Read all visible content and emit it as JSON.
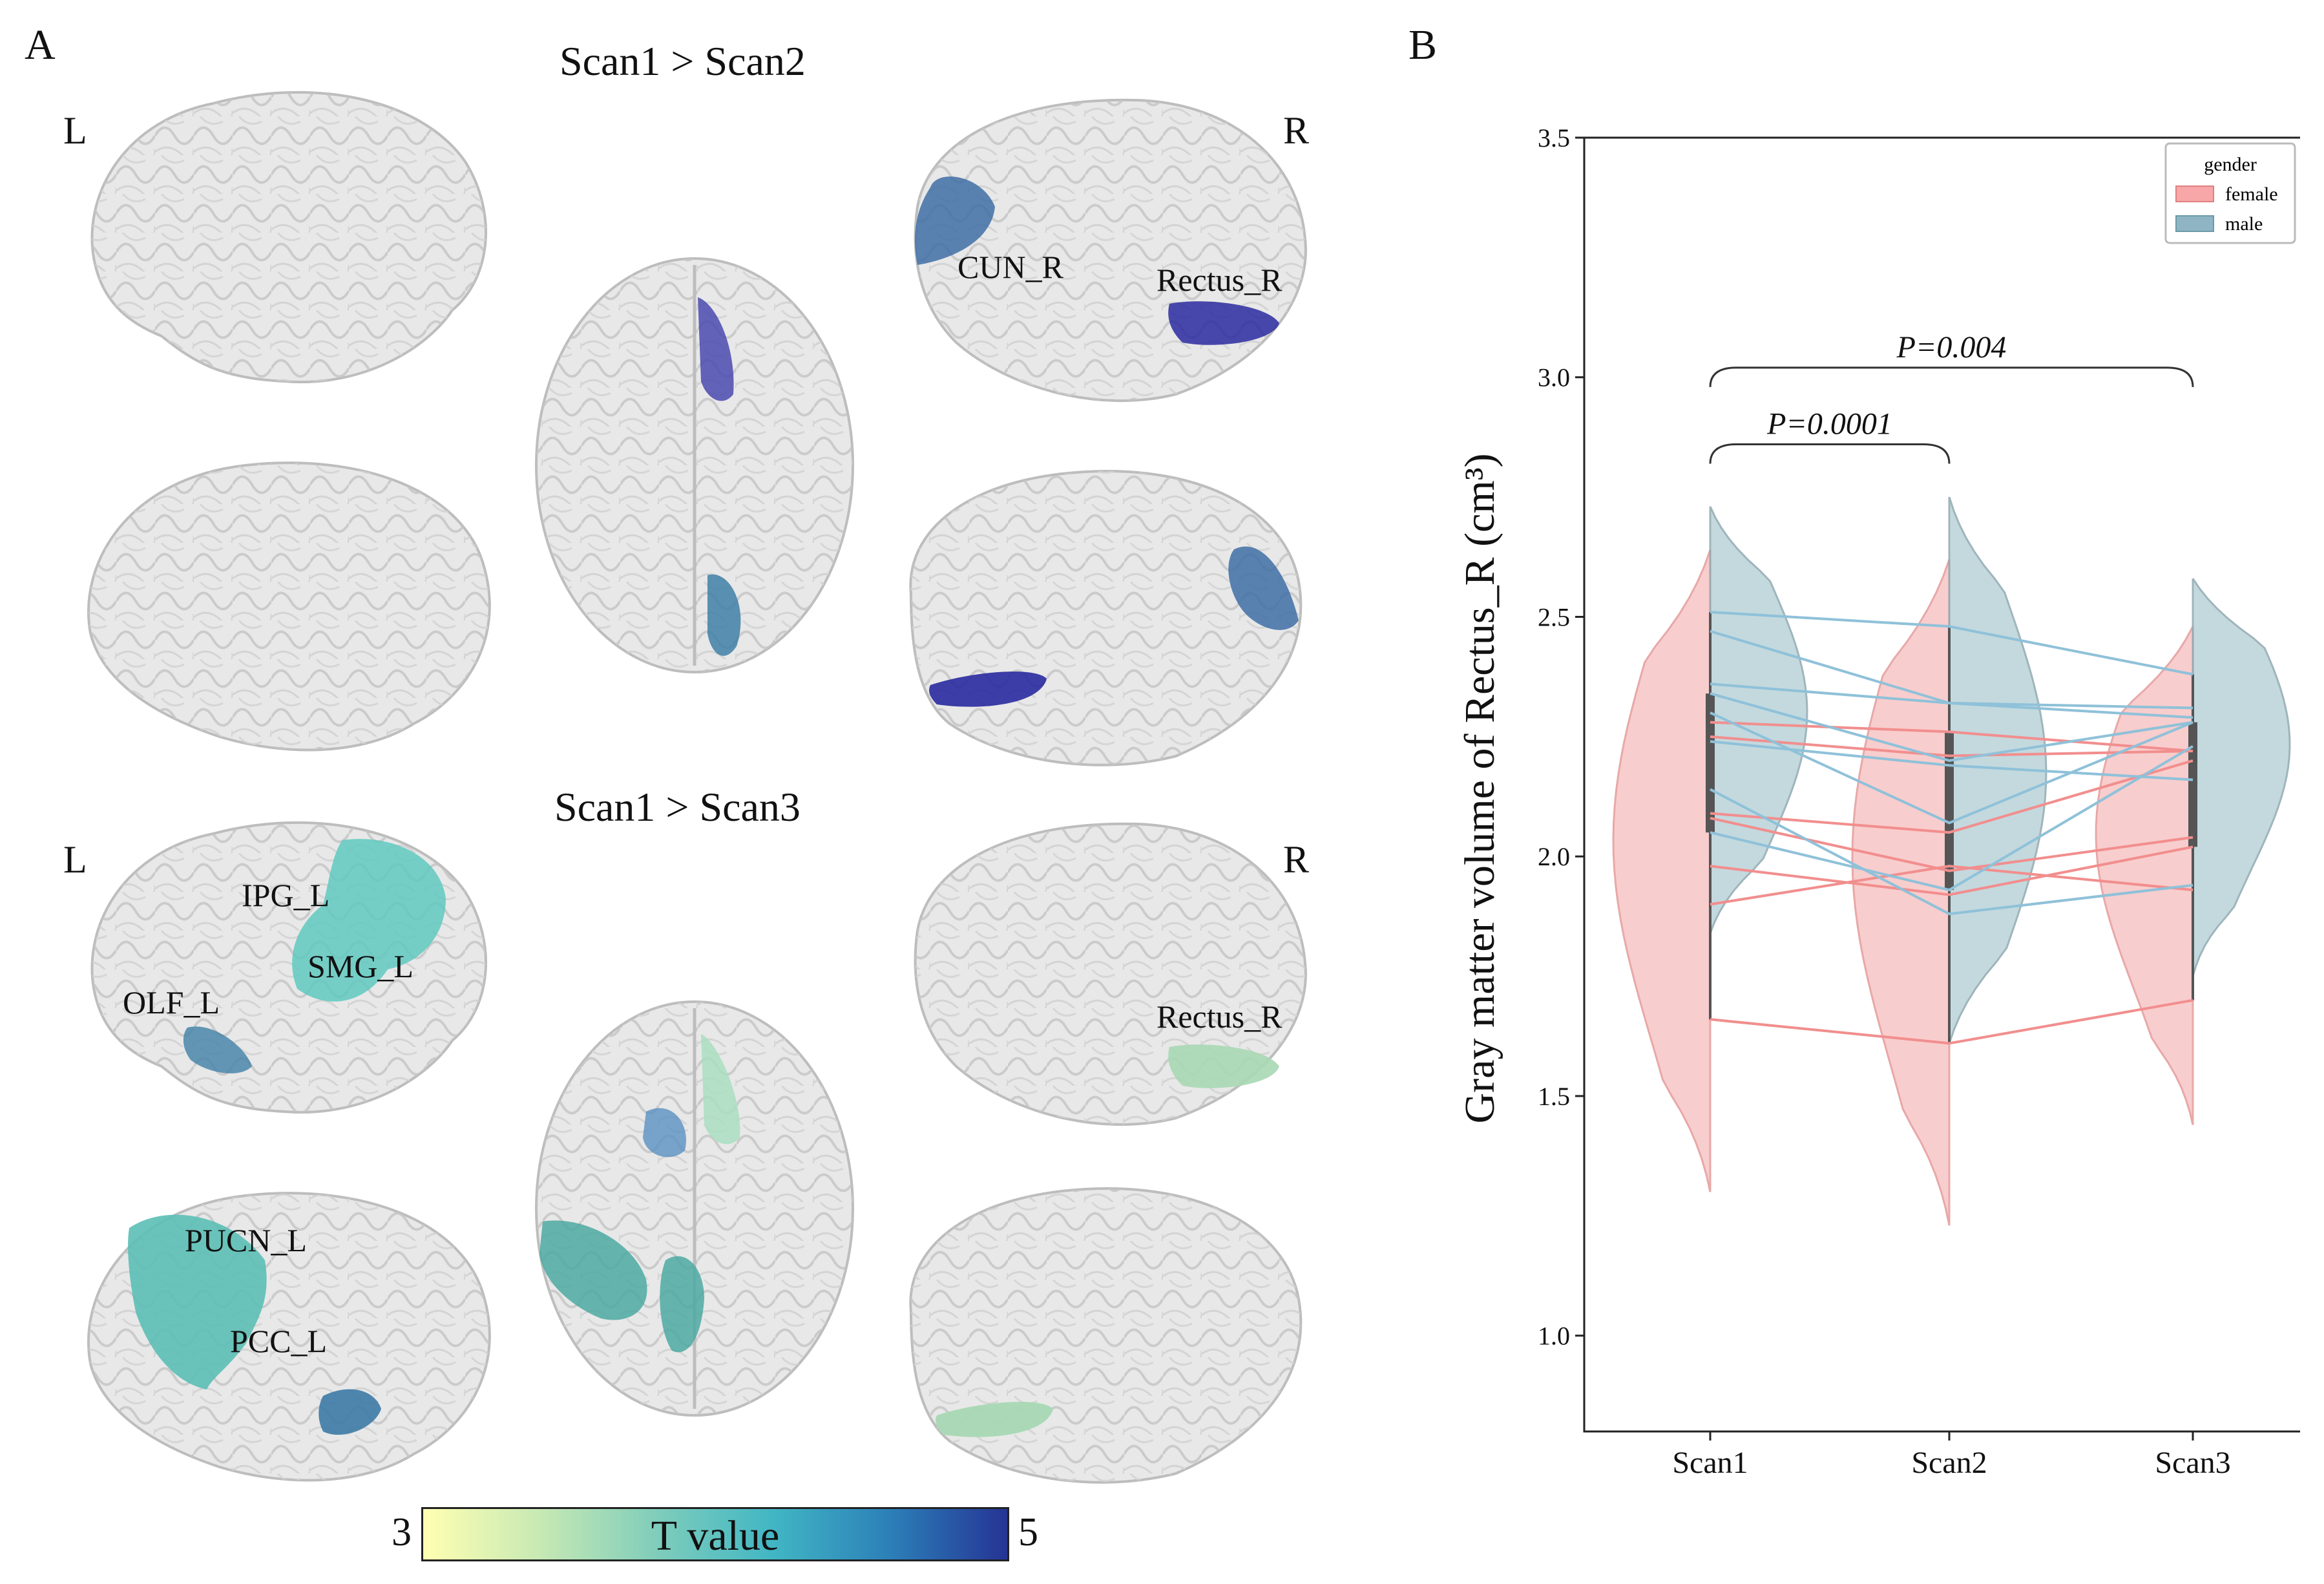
{
  "panel_a": {
    "letter": "A",
    "scan12": {
      "title": "Scan1 > Scan2",
      "left": "L",
      "right": "R",
      "regions": [
        "CUN_R",
        "Rectus_R"
      ]
    },
    "scan13": {
      "title": "Scan1 > Scan3",
      "left": "L",
      "right": "R",
      "regions": [
        "IPG_L",
        "SMG_L",
        "OLF_L",
        "Rectus_R",
        "PUCN_L",
        "PCC_L"
      ]
    },
    "colorbar": {
      "title": "T value",
      "min": "3",
      "max": "5",
      "colors": [
        "#ffffb2",
        "#c7e9b4",
        "#7fcdbb",
        "#41b6c4",
        "#2c7fb8",
        "#253494"
      ]
    }
  },
  "panel_b": {
    "letter": "B",
    "legend": {
      "title": "gender",
      "items": [
        "female",
        "male"
      ]
    },
    "annotations": [
      "P=0.0001",
      "P=0.004"
    ]
  },
  "chart_data": {
    "type": "violin",
    "title": "",
    "xlabel": "",
    "ylabel": "Gray matter volume of Rectus_R (cm³)",
    "categories": [
      "Scan1",
      "Scan2",
      "Scan3"
    ],
    "ylim": [
      0.8,
      3.5
    ],
    "yticks": [
      "1.0",
      "1.5",
      "2.0",
      "2.5",
      "3.0",
      "3.5"
    ],
    "series": [
      {
        "name": "female",
        "color": "#f28e8e",
        "fill": "#f7c5c5",
        "values": [
          [
            2.28,
            2.26,
            2.22
          ],
          [
            2.25,
            2.21,
            2.22
          ],
          [
            2.09,
            2.05,
            2.2
          ],
          [
            2.08,
            1.97,
            2.04
          ],
          [
            1.98,
            1.92,
            2.02
          ],
          [
            1.9,
            1.98,
            1.93
          ],
          [
            1.66,
            1.61,
            1.7
          ]
        ],
        "violin_range": [
          [
            1.3,
            2.64
          ],
          [
            1.23,
            2.62
          ],
          [
            1.44,
            2.48
          ]
        ]
      },
      {
        "name": "male",
        "color": "#8fc1d9",
        "fill": "#b9d3d9",
        "values": [
          [
            2.51,
            2.48,
            2.38
          ],
          [
            2.47,
            2.32,
            2.31
          ],
          [
            2.36,
            2.32,
            2.29
          ],
          [
            2.34,
            2.2,
            2.28
          ],
          [
            2.3,
            2.07,
            2.28
          ],
          [
            2.24,
            2.19,
            2.16
          ],
          [
            2.14,
            1.88,
            1.94
          ],
          [
            2.05,
            1.93,
            2.23
          ]
        ],
        "violin_range": [
          [
            1.84,
            2.73
          ],
          [
            1.61,
            2.75
          ],
          [
            1.75,
            2.58
          ]
        ]
      }
    ],
    "comparisons": [
      {
        "from": "Scan1",
        "to": "Scan2",
        "label": "P=0.0001"
      },
      {
        "from": "Scan1",
        "to": "Scan3",
        "label": "P=0.004"
      }
    ]
  }
}
